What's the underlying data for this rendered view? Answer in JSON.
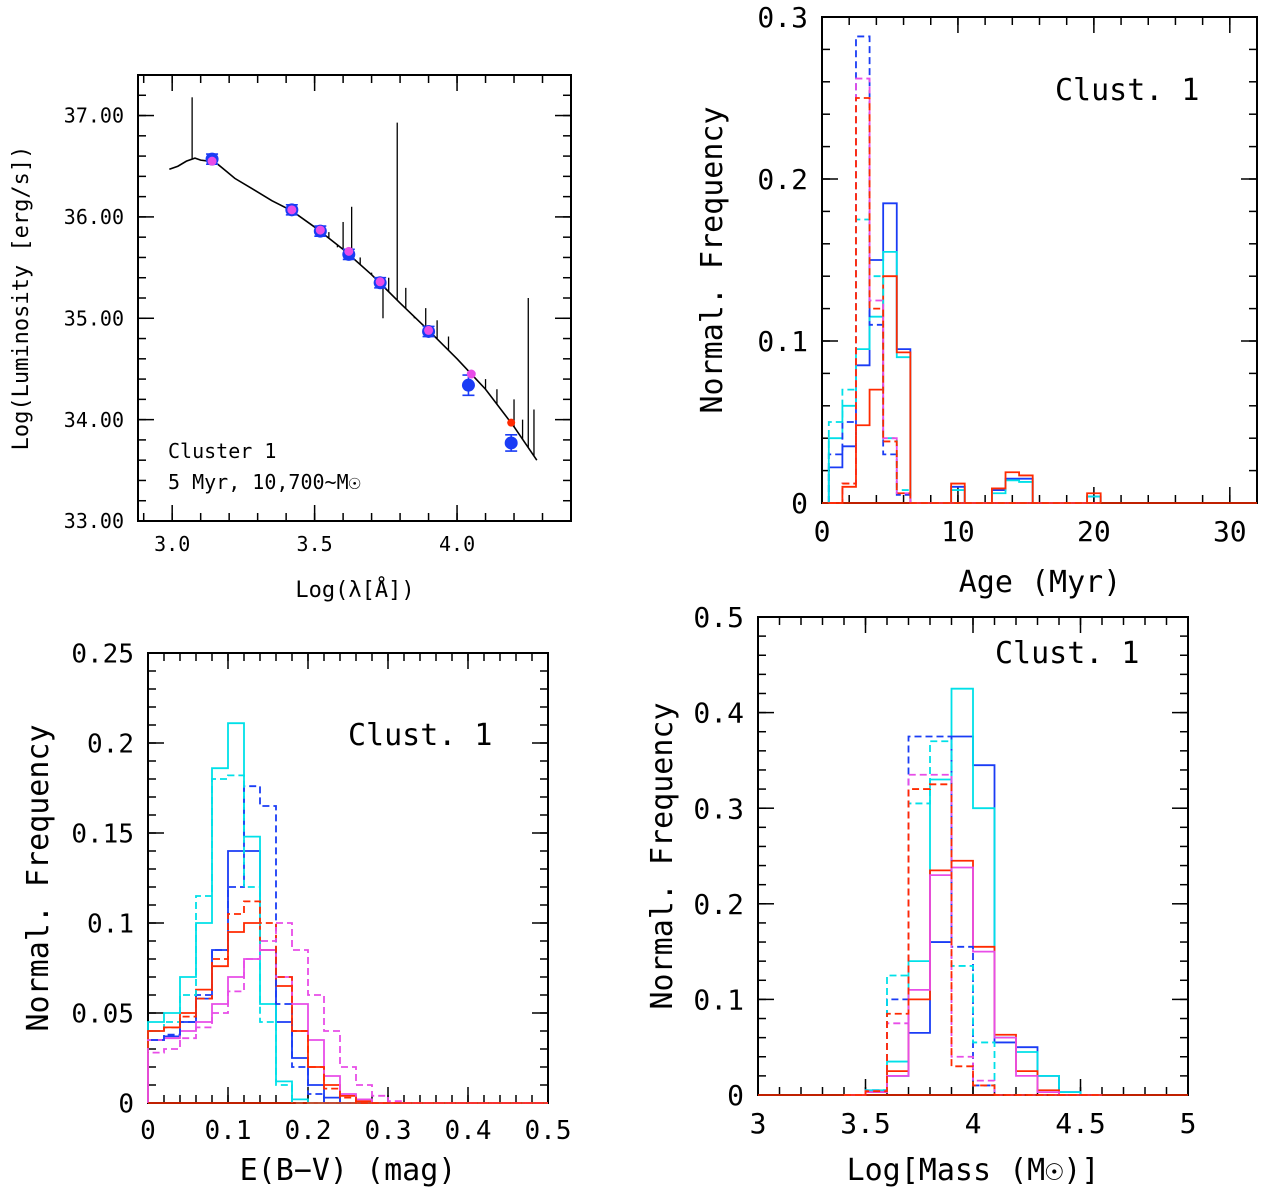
{
  "chart_data": [
    {
      "id": "sed",
      "type": "line",
      "xlabel": "Log(λ[Å])",
      "ylabel": "Log(Luminosity [erg/s])",
      "xlim": [
        2.88,
        4.4
      ],
      "ylim": [
        33.0,
        37.4
      ],
      "xticks": [
        3.0,
        3.5,
        4.0
      ],
      "xtick_labels": [
        "3.0",
        "3.5",
        "4.0"
      ],
      "yticks": [
        33.0,
        34.0,
        35.0,
        36.0,
        37.0
      ],
      "ytick_labels": [
        "33.00",
        "34.00",
        "35.00",
        "36.00",
        "37.00"
      ],
      "annotation_lines": [
        "Cluster 1",
        "5 Myr, 10,700~M☉"
      ],
      "model_spectrum": {
        "color": "#000000",
        "continuum": [
          [
            2.99,
            36.47
          ],
          [
            3.02,
            36.5
          ],
          [
            3.05,
            36.55
          ],
          [
            3.08,
            36.58
          ],
          [
            3.1,
            36.56
          ],
          [
            3.13,
            36.55
          ],
          [
            3.16,
            36.52
          ],
          [
            3.19,
            36.45
          ],
          [
            3.22,
            36.38
          ],
          [
            3.28,
            36.28
          ],
          [
            3.35,
            36.16
          ],
          [
            3.42,
            36.06
          ],
          [
            3.5,
            35.9
          ],
          [
            3.6,
            35.68
          ],
          [
            3.7,
            35.43
          ],
          [
            3.8,
            35.15
          ],
          [
            3.9,
            34.88
          ],
          [
            4.0,
            34.6
          ],
          [
            4.1,
            34.3
          ],
          [
            4.2,
            33.93
          ],
          [
            4.28,
            33.6
          ]
        ],
        "emission_lines": [
          [
            3.07,
            37.18
          ],
          [
            3.55,
            35.85
          ],
          [
            3.58,
            35.7
          ],
          [
            3.6,
            35.95
          ],
          [
            3.63,
            36.1
          ],
          [
            3.66,
            35.6
          ],
          [
            3.7,
            35.45
          ],
          [
            3.74,
            35.0
          ],
          [
            3.76,
            35.4
          ],
          [
            3.79,
            36.93
          ],
          [
            3.82,
            35.3
          ],
          [
            3.85,
            35.0
          ],
          [
            3.89,
            35.1
          ],
          [
            3.93,
            34.98
          ],
          [
            3.97,
            34.82
          ],
          [
            4.0,
            34.6
          ],
          [
            4.05,
            34.45
          ],
          [
            4.1,
            34.4
          ],
          [
            4.14,
            34.3
          ],
          [
            4.2,
            34.2
          ],
          [
            4.23,
            34.0
          ],
          [
            4.25,
            35.2
          ],
          [
            4.27,
            34.1
          ]
        ]
      },
      "observed_blue": {
        "color": "#1a3cf5",
        "x": [
          3.14,
          3.42,
          3.52,
          3.62,
          3.73,
          3.9,
          4.04,
          4.19
        ],
        "y": [
          36.57,
          36.07,
          35.86,
          35.63,
          35.35,
          34.87,
          34.34,
          33.77
        ],
        "yerr": [
          0.05,
          0.05,
          0.05,
          0.05,
          0.05,
          0.05,
          0.1,
          0.08
        ]
      },
      "model_magenta": {
        "color": "#e84de8",
        "x": [
          3.14,
          3.42,
          3.52,
          3.62,
          3.73,
          3.9,
          4.05
        ],
        "y": [
          36.55,
          36.07,
          35.87,
          35.66,
          35.36,
          34.88,
          34.45
        ]
      },
      "model_red": {
        "color": "#ff2a00",
        "x": [
          4.19
        ],
        "y": [
          33.97
        ]
      }
    },
    {
      "id": "age",
      "type": "histogram",
      "xlabel": "Age (Myr)",
      "ylabel": "Normal. Frequency",
      "title": "Clust. 1",
      "xlim": [
        0,
        32
      ],
      "ylim": [
        0,
        0.3
      ],
      "xticks": [
        0,
        10,
        20,
        30
      ],
      "xtick_labels": [
        "0",
        "10",
        "20",
        "30"
      ],
      "yticks": [
        0,
        0.1,
        0.2,
        0.3
      ],
      "ytick_labels": [
        "0",
        "0.1",
        "0.2",
        "0.3"
      ],
      "bin_edges": [
        0.5,
        1.5,
        2.5,
        3.5,
        4.5,
        5.5,
        6.5,
        7.5,
        8.5,
        9.5,
        10.5,
        11.5,
        12.5,
        13.5,
        14.5,
        15.5,
        16.5,
        17.5,
        18.5,
        19.5,
        20.5
      ],
      "series": [
        {
          "color": "#1a3cf5",
          "dash": false,
          "values": [
            0.022,
            0.035,
            0.085,
            0.15,
            0.185,
            0.095,
            0,
            0,
            0,
            0.01,
            0,
            0,
            0.008,
            0.015,
            0.015,
            0,
            0,
            0,
            0,
            0.004
          ]
        },
        {
          "color": "#00e0e8",
          "dash": false,
          "values": [
            0.04,
            0.06,
            0.095,
            0.115,
            0.155,
            0.09,
            0,
            0,
            0,
            0.008,
            0,
            0,
            0.006,
            0.014,
            0.013,
            0,
            0,
            0,
            0,
            0.004
          ]
        },
        {
          "color": "#ff2a00",
          "dash": false,
          "values": [
            0,
            0.01,
            0.048,
            0.07,
            0.14,
            0.093,
            0,
            0,
            0,
            0.012,
            0,
            0,
            0.009,
            0.019,
            0.017,
            0,
            0,
            0,
            0,
            0.006
          ]
        },
        {
          "color": "#1a3cf5",
          "dash": true,
          "values": [
            0.03,
            0.05,
            0.288,
            0.11,
            0.03,
            0.005,
            0,
            0,
            0,
            0,
            0,
            0,
            0,
            0,
            0,
            0,
            0,
            0,
            0,
            0
          ]
        },
        {
          "color": "#00e0e8",
          "dash": true,
          "values": [
            0.05,
            0.07,
            0.175,
            0.14,
            0.04,
            0.008,
            0,
            0,
            0,
            0,
            0,
            0,
            0,
            0,
            0,
            0,
            0,
            0,
            0,
            0
          ]
        },
        {
          "color": "#e84de8",
          "dash": true,
          "values": [
            0,
            0.012,
            0.262,
            0.125,
            0.04,
            0.006,
            0,
            0,
            0,
            0,
            0,
            0,
            0,
            0,
            0,
            0,
            0,
            0,
            0,
            0
          ]
        },
        {
          "color": "#ff2a00",
          "dash": true,
          "values": [
            0,
            0.012,
            0.25,
            0.12,
            0.038,
            0.006,
            0,
            0,
            0,
            0,
            0,
            0,
            0,
            0,
            0,
            0,
            0,
            0,
            0,
            0
          ]
        }
      ]
    },
    {
      "id": "ebv",
      "type": "histogram",
      "xlabel": "E(B−V) (mag)",
      "ylabel": "Normal. Frequency",
      "title": "Clust. 1",
      "xlim": [
        0,
        0.5
      ],
      "ylim": [
        0,
        0.25
      ],
      "xticks": [
        0,
        0.1,
        0.2,
        0.3,
        0.4,
        0.5
      ],
      "xtick_labels": [
        "0",
        "0.1",
        "0.2",
        "0.3",
        "0.4",
        "0.5"
      ],
      "yticks": [
        0,
        0.05,
        0.1,
        0.15,
        0.2,
        0.25
      ],
      "ytick_labels": [
        "0",
        "0.05",
        "0.1",
        "0.15",
        "0.2",
        "0.25"
      ],
      "bin_edges": [
        0,
        0.02,
        0.04,
        0.06,
        0.08,
        0.1,
        0.12,
        0.14,
        0.16,
        0.18,
        0.2,
        0.22,
        0.24,
        0.26,
        0.28,
        0.3,
        0.32,
        0.34,
        0.36,
        0.38,
        0.4,
        0.42,
        0.44,
        0.46,
        0.48,
        0.5
      ],
      "series": [
        {
          "color": "#1a3cf5",
          "dash": false,
          "values": [
            0.035,
            0.037,
            0.045,
            0.058,
            0.085,
            0.14,
            0.14,
            0.085,
            0.045,
            0.025,
            0.01,
            0.003,
            0,
            0,
            0,
            0,
            0,
            0,
            0,
            0,
            0,
            0,
            0,
            0,
            0
          ]
        },
        {
          "color": "#00e0e8",
          "dash": false,
          "values": [
            0.045,
            0.05,
            0.07,
            0.1,
            0.186,
            0.211,
            0.148,
            0.055,
            0.012,
            0.002,
            0,
            0,
            0,
            0,
            0,
            0,
            0,
            0,
            0,
            0,
            0,
            0,
            0,
            0,
            0
          ]
        },
        {
          "color": "#ff2a00",
          "dash": false,
          "values": [
            0.04,
            0.042,
            0.05,
            0.063,
            0.076,
            0.095,
            0.1,
            0.085,
            0.065,
            0.04,
            0.02,
            0.01,
            0.004,
            0.001,
            0,
            0,
            0,
            0,
            0,
            0,
            0,
            0,
            0,
            0,
            0
          ]
        },
        {
          "color": "#e84de8",
          "dash": false,
          "values": [
            0.035,
            0.036,
            0.04,
            0.045,
            0.055,
            0.07,
            0.08,
            0.085,
            0.07,
            0.055,
            0.035,
            0.015,
            0.005,
            0.002,
            0,
            0,
            0,
            0,
            0,
            0,
            0,
            0,
            0,
            0,
            0
          ]
        },
        {
          "color": "#1a3cf5",
          "dash": true,
          "values": [
            0.035,
            0.038,
            0.045,
            0.06,
            0.085,
            0.12,
            0.176,
            0.165,
            0.055,
            0.02,
            0.005,
            0,
            0,
            0,
            0,
            0,
            0,
            0,
            0,
            0,
            0,
            0,
            0,
            0,
            0
          ]
        },
        {
          "color": "#00e0e8",
          "dash": true,
          "values": [
            0.04,
            0.045,
            0.06,
            0.115,
            0.18,
            0.182,
            0.12,
            0.045,
            0.01,
            0,
            0,
            0,
            0,
            0,
            0,
            0,
            0,
            0,
            0,
            0,
            0,
            0,
            0,
            0,
            0
          ]
        },
        {
          "color": "#ff2a00",
          "dash": true,
          "values": [
            0.04,
            0.042,
            0.048,
            0.058,
            0.08,
            0.105,
            0.112,
            0.1,
            0.07,
            0.04,
            0.02,
            0.008,
            0.003,
            0,
            0,
            0,
            0,
            0,
            0,
            0,
            0,
            0,
            0,
            0,
            0
          ]
        },
        {
          "color": "#e84de8",
          "dash": true,
          "values": [
            0.028,
            0.03,
            0.036,
            0.042,
            0.05,
            0.062,
            0.08,
            0.09,
            0.1,
            0.085,
            0.06,
            0.04,
            0.02,
            0.01,
            0.004,
            0.001,
            0,
            0,
            0,
            0,
            0,
            0,
            0,
            0,
            0
          ]
        }
      ]
    },
    {
      "id": "mass",
      "type": "histogram",
      "xlabel": "Log[Mass (M☉)]",
      "ylabel": "Normal. Frequency",
      "title": "Clust. 1",
      "xlim": [
        3,
        5
      ],
      "ylim": [
        0,
        0.5
      ],
      "xticks": [
        3,
        3.5,
        4,
        4.5,
        5
      ],
      "xtick_labels": [
        "3",
        "3.5",
        "4",
        "4.5",
        "5"
      ],
      "yticks": [
        0,
        0.1,
        0.2,
        0.3,
        0.4,
        0.5
      ],
      "ytick_labels": [
        "0",
        "0.1",
        "0.2",
        "0.3",
        "0.4",
        "0.5"
      ],
      "bin_edges": [
        3.4,
        3.5,
        3.6,
        3.7,
        3.8,
        3.9,
        4.0,
        4.1,
        4.2,
        4.3,
        4.4,
        4.5,
        4.6
      ],
      "series": [
        {
          "color": "#1a3cf5",
          "dash": false,
          "values": [
            0,
            0.003,
            0.02,
            0.065,
            0.16,
            0.375,
            0.345,
            0.055,
            0.05,
            0.02,
            0.003,
            0
          ]
        },
        {
          "color": "#00e0e8",
          "dash": false,
          "values": [
            0,
            0.005,
            0.035,
            0.14,
            0.33,
            0.425,
            0.3,
            0.06,
            0.045,
            0.02,
            0.003,
            0
          ]
        },
        {
          "color": "#ff2a00",
          "dash": false,
          "values": [
            0,
            0.003,
            0.025,
            0.1,
            0.235,
            0.245,
            0.155,
            0.063,
            0.025,
            0.005,
            0,
            0
          ]
        },
        {
          "color": "#e84de8",
          "dash": false,
          "values": [
            0,
            0.003,
            0.02,
            0.11,
            0.23,
            0.238,
            0.15,
            0.06,
            0.02,
            0.003,
            0,
            0
          ]
        },
        {
          "color": "#1a3cf5",
          "dash": true,
          "values": [
            0,
            0.005,
            0.1,
            0.375,
            0.375,
            0.155,
            0.01,
            0,
            0,
            0,
            0,
            0
          ]
        },
        {
          "color": "#00e0e8",
          "dash": true,
          "values": [
            0,
            0.005,
            0.125,
            0.305,
            0.37,
            0.135,
            0.055,
            0,
            0,
            0,
            0,
            0
          ]
        },
        {
          "color": "#e84de8",
          "dash": true,
          "values": [
            0,
            0.004,
            0.075,
            0.335,
            0.335,
            0.04,
            0.015,
            0,
            0,
            0,
            0,
            0
          ]
        },
        {
          "color": "#ff2a00",
          "dash": true,
          "values": [
            0,
            0.004,
            0.085,
            0.32,
            0.325,
            0.03,
            0.01,
            0,
            0,
            0,
            0,
            0
          ]
        }
      ]
    }
  ]
}
